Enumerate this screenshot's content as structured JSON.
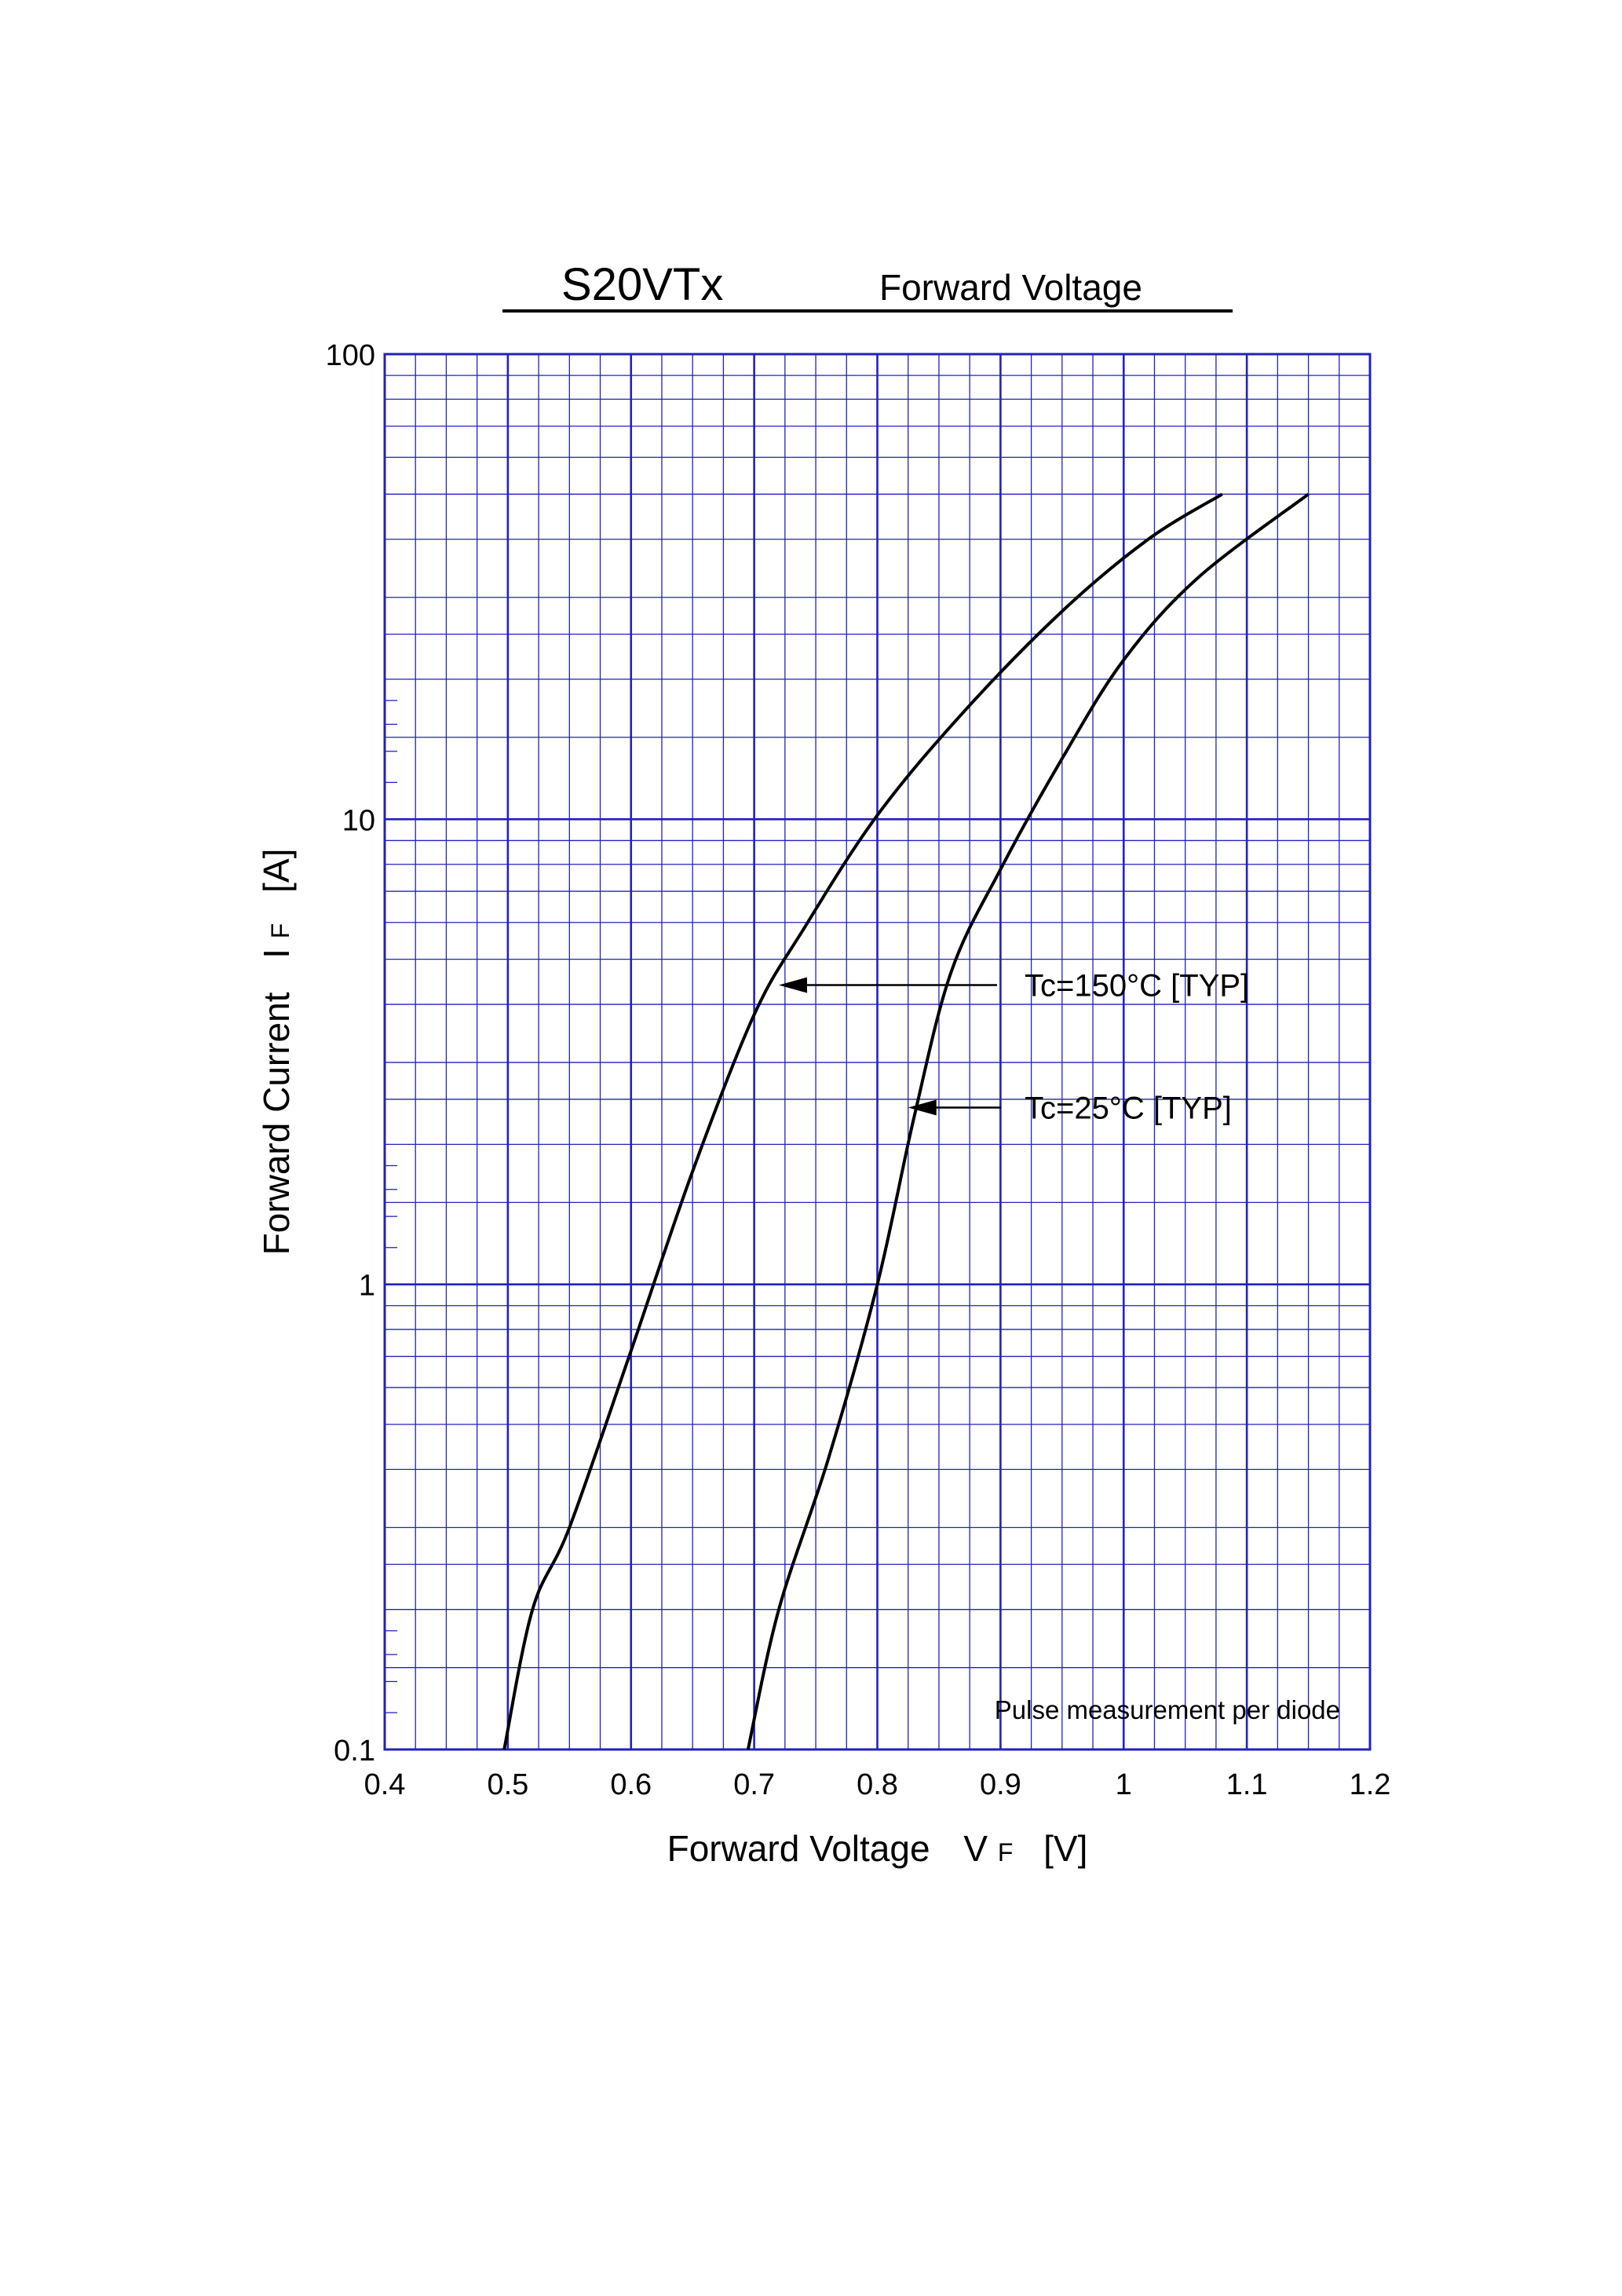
{
  "chart_data": {
    "type": "line",
    "title": "S20VTx",
    "subtitle": "Forward Voltage",
    "xlabel": "Forward Voltage",
    "xlabel_symbol": "V",
    "xlabel_subscript": "F",
    "xlabel_unit": "[V]",
    "ylabel": "Forward Current",
    "ylabel_symbol": "I",
    "ylabel_subscript": "F",
    "ylabel_unit": "[A]",
    "xlim": [
      0.4,
      1.2
    ],
    "ylim": [
      0.1,
      100
    ],
    "yscale": "log",
    "grid": true,
    "grid_color": "#2222bb",
    "line_color": "#000000",
    "x_ticks": [
      "0.4",
      "0.5",
      "0.6",
      "0.7",
      "0.8",
      "0.9",
      "1",
      "1.1",
      "1.2"
    ],
    "y_ticks": [
      "0.1",
      "1",
      "10",
      "100"
    ],
    "note": "Pulse measurement per diode",
    "series": [
      {
        "name": "Tc=150°C [TYP]",
        "points": [
          [
            0.497,
            0.1
          ],
          [
            0.52,
            0.2
          ],
          [
            0.55,
            0.3
          ],
          [
            0.6,
            0.72
          ],
          [
            0.65,
            1.75
          ],
          [
            0.7,
            3.8
          ],
          [
            0.74,
            5.8
          ],
          [
            0.8,
            10.2
          ],
          [
            0.87,
            17
          ],
          [
            0.95,
            28
          ],
          [
            1.02,
            40
          ],
          [
            1.08,
            50
          ]
        ]
      },
      {
        "name": "Tc=25°C [TYP]",
        "points": [
          [
            0.695,
            0.1
          ],
          [
            0.72,
            0.2
          ],
          [
            0.76,
            0.42
          ],
          [
            0.8,
            1.0
          ],
          [
            0.83,
            2.3
          ],
          [
            0.86,
            4.7
          ],
          [
            0.9,
            7.8
          ],
          [
            0.95,
            13.5
          ],
          [
            1.0,
            22
          ],
          [
            1.06,
            33
          ],
          [
            1.15,
            50
          ]
        ]
      }
    ],
    "annotations": [
      {
        "text": "Tc=150°C [TYP]",
        "series": 0,
        "arrow_to": [
          0.72,
          4.4
        ]
      },
      {
        "text": "Tc=25°C [TYP]",
        "series": 1,
        "arrow_to": [
          0.825,
          2.4
        ]
      }
    ]
  }
}
